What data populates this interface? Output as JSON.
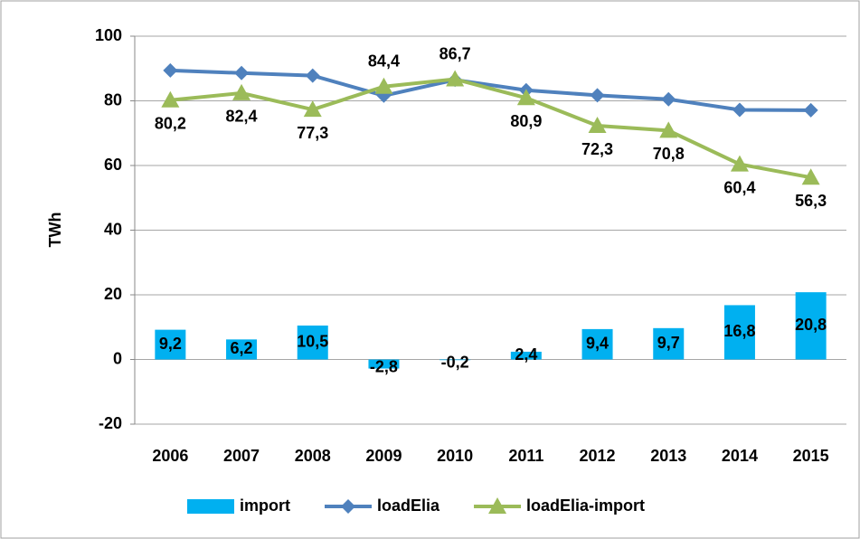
{
  "chart_data": {
    "type": "combo",
    "y_label": "TWh",
    "categories": [
      "2006",
      "2007",
      "2008",
      "2009",
      "2010",
      "2011",
      "2012",
      "2013",
      "2014",
      "2015"
    ],
    "series": [
      {
        "name": "import",
        "type": "bar",
        "color": "#00b0f0",
        "values": [
          9.2,
          6.2,
          10.5,
          -2.8,
          -0.2,
          2.4,
          9.4,
          9.7,
          16.8,
          20.8
        ],
        "value_labels": [
          "9,2",
          "6,2",
          "10,5",
          "-2,8",
          "-0,2",
          "2,4",
          "9,4",
          "9,7",
          "16,8",
          "20,8"
        ]
      },
      {
        "name": "loadElia",
        "type": "line",
        "marker": "diamond",
        "color": "#4f81bd",
        "values": [
          89.4,
          88.6,
          87.8,
          81.6,
          86.5,
          83.3,
          81.7,
          80.5,
          77.2,
          77.1
        ]
      },
      {
        "name": "loadElia-import",
        "type": "line",
        "marker": "triangle",
        "color": "#9bbb59",
        "values": [
          80.2,
          82.4,
          77.3,
          84.4,
          86.7,
          80.9,
          72.3,
          70.8,
          60.4,
          56.3
        ],
        "value_labels": [
          "80,2",
          "82,4",
          "77,3",
          "84,4",
          "86,7",
          "80,9",
          "72,3",
          "70,8",
          "60,4",
          "56,3"
        ]
      }
    ],
    "ylim": [
      -20,
      100
    ],
    "yticks": [
      -20,
      0,
      20,
      40,
      60,
      80,
      100
    ],
    "grid": true,
    "legend": "bottom"
  }
}
